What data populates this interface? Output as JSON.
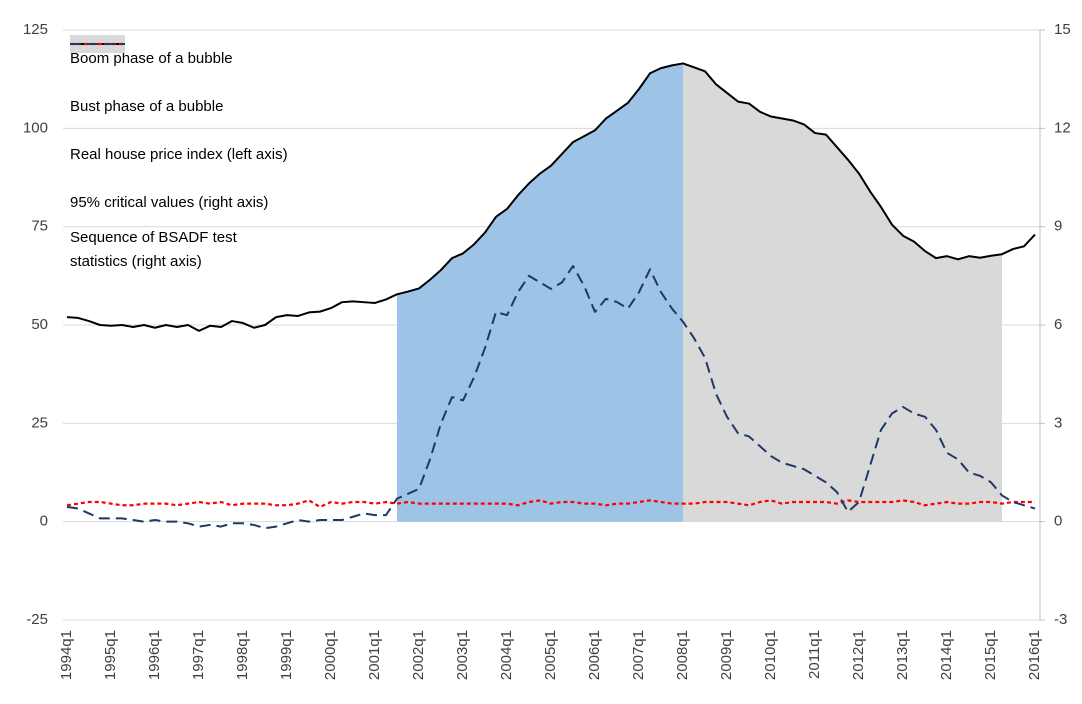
{
  "chart_data": {
    "type": "line",
    "categories": [
      "1994q1",
      null,
      null,
      null,
      "1995q1",
      null,
      null,
      null,
      "1996q1",
      null,
      null,
      null,
      "1997q1",
      null,
      null,
      null,
      "1998q1",
      null,
      null,
      null,
      "1999q1",
      null,
      null,
      null,
      "2000q1",
      null,
      null,
      null,
      "2001q1",
      null,
      null,
      null,
      "2002q1",
      null,
      null,
      null,
      "2003q1",
      null,
      null,
      null,
      "2004q1",
      null,
      null,
      null,
      "2005q1",
      null,
      null,
      null,
      "2006q1",
      null,
      null,
      null,
      "2007q1",
      null,
      null,
      null,
      "2008q1",
      null,
      null,
      null,
      "2009q1",
      null,
      null,
      null,
      "2010q1",
      null,
      null,
      null,
      "2011q1",
      null,
      null,
      null,
      "2012q1",
      null,
      null,
      null,
      "2013q1",
      null,
      null,
      null,
      "2014q1",
      null,
      null,
      null,
      "2015q1",
      null,
      null,
      null,
      "2016q1"
    ],
    "series": [
      {
        "name": "Boom phase of a bubble",
        "kind": "area",
        "color": "#9dc3e6",
        "values": [
          null,
          null,
          null,
          null,
          null,
          null,
          null,
          null,
          null,
          null,
          null,
          null,
          null,
          null,
          null,
          null,
          null,
          null,
          null,
          null,
          null,
          null,
          null,
          null,
          null,
          null,
          null,
          null,
          null,
          null,
          57.8,
          58.5,
          59.3,
          61.5,
          64,
          67,
          68.2,
          70.5,
          73.5,
          77.5,
          79.5,
          83,
          86,
          88.5,
          90.5,
          93.5,
          96.5,
          98,
          99.5,
          102.5,
          104.5,
          106.5,
          110,
          114,
          115.3,
          116,
          116.5,
          null,
          null,
          null,
          null,
          null,
          null,
          null,
          null,
          null,
          null,
          null,
          null,
          null,
          null,
          null,
          null,
          null,
          null,
          null,
          null,
          null,
          null,
          null,
          null,
          null,
          null,
          null,
          null,
          null,
          null,
          null,
          null
        ]
      },
      {
        "name": "Bust phase of a bubble",
        "kind": "area",
        "color": "#d9d9d9",
        "values": [
          null,
          null,
          null,
          null,
          null,
          null,
          null,
          null,
          null,
          null,
          null,
          null,
          null,
          null,
          null,
          null,
          null,
          null,
          null,
          null,
          null,
          null,
          null,
          null,
          null,
          null,
          null,
          null,
          null,
          null,
          null,
          null,
          null,
          null,
          null,
          null,
          null,
          null,
          null,
          null,
          null,
          null,
          null,
          null,
          null,
          null,
          null,
          null,
          null,
          null,
          null,
          null,
          null,
          null,
          null,
          null,
          116.5,
          115.5,
          114.5,
          111.2,
          109,
          106.8,
          106.3,
          104.2,
          103,
          102.5,
          102,
          101,
          98.8,
          98.4,
          95.2,
          92,
          88.5,
          84,
          80,
          75.5,
          72.7,
          71.2,
          68.8,
          67,
          67.5,
          66.7,
          67.5,
          67.1,
          67.6,
          68,
          null,
          null,
          null
        ]
      },
      {
        "name": "Real house price index (left axis)",
        "kind": "line",
        "color": "#000000",
        "dash": "",
        "width": 2,
        "values": [
          52,
          51.8,
          51,
          50,
          49.8,
          50,
          49.5,
          50,
          49.3,
          50,
          49.5,
          50,
          48.5,
          49.8,
          49.5,
          51,
          50.5,
          49.3,
          50,
          52,
          52.5,
          52.3,
          53.2,
          53.4,
          54.3,
          55.8,
          56,
          55.8,
          55.6,
          56.5,
          57.8,
          58.5,
          59.3,
          61.5,
          64,
          67,
          68.2,
          70.5,
          73.5,
          77.5,
          79.5,
          83,
          86,
          88.5,
          90.5,
          93.5,
          96.5,
          98,
          99.5,
          102.5,
          104.5,
          106.5,
          110,
          114,
          115.3,
          116,
          116.5,
          115.5,
          114.5,
          111.2,
          109,
          106.8,
          106.3,
          104.2,
          103,
          102.5,
          102,
          101,
          98.8,
          98.4,
          95.2,
          92,
          88.5,
          84,
          80,
          75.5,
          72.7,
          71.2,
          68.8,
          67,
          67.5,
          66.7,
          67.5,
          67.1,
          67.6,
          68,
          69.3,
          70,
          73
        ]
      },
      {
        "name": "95% critical values (right axis)",
        "kind": "line",
        "axis": "y2",
        "color": "#ff0000",
        "dash": "4,3",
        "width": 2.2,
        "values": [
          0.5,
          0.55,
          0.6,
          0.6,
          0.55,
          0.5,
          0.5,
          0.55,
          0.55,
          0.55,
          0.5,
          0.55,
          0.6,
          0.55,
          0.6,
          0.5,
          0.55,
          0.55,
          0.55,
          0.5,
          0.5,
          0.55,
          0.65,
          0.45,
          0.6,
          0.55,
          0.6,
          0.6,
          0.55,
          0.6,
          0.55,
          0.6,
          0.55,
          0.55,
          0.55,
          0.55,
          0.55,
          0.55,
          0.55,
          0.55,
          0.55,
          0.5,
          0.6,
          0.65,
          0.55,
          0.6,
          0.6,
          0.55,
          0.55,
          0.5,
          0.55,
          0.55,
          0.6,
          0.65,
          0.6,
          0.55,
          0.55,
          0.55,
          0.6,
          0.6,
          0.6,
          0.55,
          0.5,
          0.6,
          0.65,
          0.55,
          0.6,
          0.6,
          0.6,
          0.6,
          0.55,
          0.65,
          0.6,
          0.6,
          0.6,
          0.6,
          0.65,
          0.6,
          0.5,
          0.55,
          0.6,
          0.55,
          0.55,
          0.6,
          0.6,
          0.55,
          0.6,
          0.6,
          0.6
        ]
      },
      {
        "name": "Sequence of BSADF test statistics (right axis)",
        "kind": "line",
        "axis": "y2",
        "color": "#1f3864",
        "dash": "11,6",
        "width": 2,
        "values": [
          0.45,
          0.4,
          0.25,
          0.1,
          0.1,
          0.1,
          0.05,
          0.0,
          0.05,
          0.0,
          0.0,
          -0.05,
          -0.15,
          -0.1,
          -0.15,
          -0.05,
          -0.05,
          -0.1,
          -0.2,
          -0.15,
          -0.05,
          0.05,
          0.0,
          0.05,
          0.05,
          0.05,
          0.15,
          0.25,
          0.2,
          0.2,
          0.7,
          0.85,
          1.0,
          1.9,
          3.0,
          3.8,
          3.7,
          4.4,
          5.3,
          6.4,
          6.3,
          7.0,
          7.5,
          7.3,
          7.1,
          7.3,
          7.8,
          7.2,
          6.4,
          6.8,
          6.7,
          6.5,
          7.0,
          7.7,
          7.0,
          6.5,
          6.1,
          5.6,
          5.0,
          3.9,
          3.2,
          2.7,
          2.6,
          2.3,
          2.0,
          1.8,
          1.7,
          1.6,
          1.4,
          1.2,
          0.9,
          0.3,
          0.6,
          1.7,
          2.8,
          3.3,
          3.5,
          3.3,
          3.2,
          2.8,
          2.1,
          1.9,
          1.5,
          1.4,
          1.2,
          0.8,
          0.6,
          0.5,
          0.4
        ]
      }
    ],
    "ylim": [
      -25,
      125
    ],
    "yticks": [
      -25,
      0,
      25,
      50,
      75,
      100,
      125
    ],
    "y2lim": [
      -3,
      15
    ],
    "y2ticks": [
      -3,
      0,
      3,
      6,
      9,
      12,
      15
    ],
    "grid": true
  }
}
